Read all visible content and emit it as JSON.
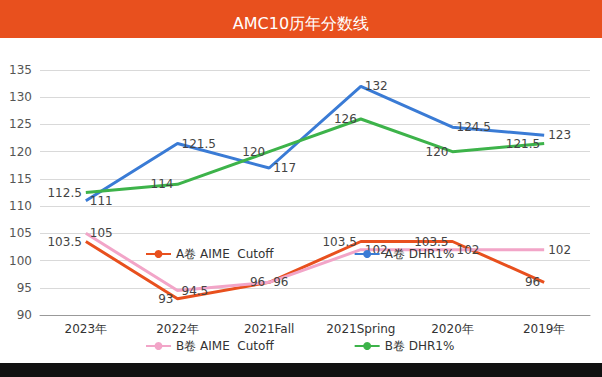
{
  "chart_data": {
    "type": "line",
    "title": "AMC10历年分数线",
    "categories": [
      "2023年",
      "2022年",
      "2021Fall",
      "2021Spring",
      "2020年",
      "2019年"
    ],
    "series": [
      {
        "name": "A卷 AIME  Cutoff",
        "color": "#e8501e",
        "values": [
          103.5,
          93,
          96,
          103.5,
          103.5,
          96
        ]
      },
      {
        "name": "A卷 DHR1%",
        "color": "#3a7bd5",
        "values": [
          111,
          121.5,
          117,
          132,
          124.5,
          123
        ]
      },
      {
        "name": "B卷 AIME  Cutoff",
        "color": "#f2a5c8",
        "values": [
          105,
          94.5,
          96,
          102,
          102,
          102
        ]
      },
      {
        "name": "B卷 DHR1%",
        "color": "#3db34a",
        "values": [
          112.5,
          114,
          120,
          126,
          120,
          121.5
        ]
      }
    ],
    "ylim": [
      90,
      135
    ],
    "yticks": [
      90,
      95,
      100,
      105,
      110,
      115,
      120,
      125,
      130,
      135
    ],
    "grid": true,
    "legend": "bottom",
    "data_labels": true
  }
}
